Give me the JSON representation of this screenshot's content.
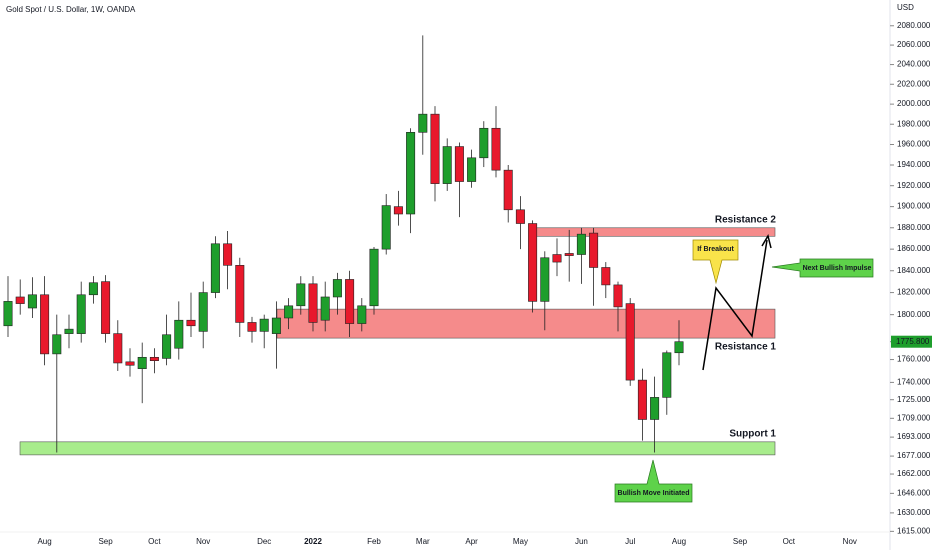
{
  "chart_data": {
    "type": "candlestick",
    "title": "Gold Spot / U.S. Dollar, 1W, OANDA",
    "currency": "USD",
    "log_scale": true,
    "up_color": "#1e9e2c",
    "down_color": "#e8192c",
    "categories": [
      null,
      null,
      null,
      "Aug",
      null,
      null,
      null,
      null,
      "Sep",
      null,
      null,
      null,
      "Oct",
      null,
      null,
      null,
      "Nov",
      null,
      null,
      null,
      null,
      "Dec",
      null,
      null,
      null,
      "2022",
      null,
      null,
      null,
      null,
      "Feb",
      null,
      null,
      null,
      "Mar",
      null,
      null,
      null,
      "Apr",
      null,
      null,
      null,
      "May",
      null,
      null,
      null,
      null,
      "Jun",
      null,
      null,
      null,
      "Jul",
      null,
      null,
      null,
      "Aug",
      null,
      null,
      null,
      null,
      "Sep",
      null,
      null,
      null,
      "Oct",
      null,
      null,
      null,
      null,
      "Nov"
    ],
    "open": [
      1790,
      1816,
      1806,
      1818,
      1765,
      1783,
      1783,
      1818,
      1830,
      1783,
      1758,
      1752,
      1762,
      1761,
      1770,
      1795,
      1785,
      1820,
      1865,
      1845,
      1793,
      1785,
      1783,
      1797,
      1808,
      1828,
      1795,
      1816,
      1832,
      1792,
      1808,
      1860,
      1900,
      1893,
      1972,
      1990,
      1922,
      1958,
      1924,
      1947,
      1976,
      1935,
      1897,
      1884,
      1812,
      1855,
      1856,
      1855,
      1875,
      1843,
      1827,
      1810,
      1742,
      1708,
      1727,
      1766,
      null,
      null,
      null,
      null,
      null,
      null,
      null,
      null,
      null,
      null,
      null,
      null,
      null,
      null
    ],
    "high": [
      1835,
      1832,
      1834,
      1835,
      1800,
      1800,
      1830,
      1835,
      1836,
      1795,
      1770,
      1775,
      1770,
      1800,
      1812,
      1820,
      1830,
      1872,
      1877,
      1852,
      1798,
      1800,
      1812,
      1815,
      1835,
      1835,
      1830,
      1838,
      1840,
      1815,
      1862,
      1912,
      1915,
      1976,
      2070,
      1998,
      1966,
      1962,
      1955,
      1983,
      1998,
      1940,
      1910,
      1887,
      1858,
      1870,
      1878,
      1880,
      1880,
      1848,
      1830,
      1815,
      1752,
      1745,
      1768,
      1795,
      null,
      null,
      null,
      null,
      null,
      null,
      null,
      null,
      null,
      null,
      null,
      null,
      null,
      null
    ],
    "low": [
      1780,
      1800,
      1797,
      1755,
      1680,
      1770,
      1775,
      1810,
      1775,
      1750,
      1745,
      1722,
      1748,
      1755,
      1760,
      1780,
      1770,
      1815,
      1823,
      1780,
      1775,
      1770,
      1752,
      1787,
      1800,
      1785,
      1785,
      1800,
      1780,
      1785,
      1800,
      1855,
      1882,
      1875,
      1950,
      1905,
      1915,
      1890,
      1918,
      1938,
      1928,
      1885,
      1860,
      1802,
      1786,
      1835,
      1830,
      1828,
      1808,
      1815,
      1785,
      1737,
      1690,
      1680,
      1712,
      1755,
      null,
      null,
      null,
      null,
      null,
      null,
      null,
      null,
      null,
      null,
      null,
      null,
      null,
      null
    ],
    "close": [
      1812,
      1810,
      1818,
      1765,
      1782,
      1787,
      1818,
      1829,
      1783,
      1757,
      1755,
      1762,
      1759,
      1782,
      1795,
      1790,
      1820,
      1865,
      1845,
      1793,
      1785,
      1796,
      1797,
      1808,
      1828,
      1793,
      1816,
      1832,
      1792,
      1808,
      1860,
      1901,
      1893,
      1972,
      1990,
      1922,
      1958,
      1924,
      1947,
      1976,
      1935,
      1897,
      1884,
      1812,
      1852,
      1848,
      1854,
      1874,
      1843,
      1827,
      1807,
      1742,
      1708,
      1727,
      1766,
      1775.8,
      null,
      null,
      null,
      null,
      null,
      null,
      null,
      null,
      null,
      null,
      null,
      null,
      null,
      null
    ],
    "ylim": [
      1600,
      2107
    ],
    "yticks": [
      {
        "value": 2080,
        "label": "2080.000"
      },
      {
        "value": 2060,
        "label": "2060.000"
      },
      {
        "value": 2040,
        "label": "2040.000"
      },
      {
        "value": 2020,
        "label": "2020.000"
      },
      {
        "value": 2000,
        "label": "2000.000"
      },
      {
        "value": 1980,
        "label": "1980.000"
      },
      {
        "value": 1960,
        "label": "1960.000"
      },
      {
        "value": 1940,
        "label": "1940.000"
      },
      {
        "value": 1920,
        "label": "1920.000"
      },
      {
        "value": 1900,
        "label": "1900.000"
      },
      {
        "value": 1880,
        "label": "1880.000"
      },
      {
        "value": 1860,
        "label": "1860.000"
      },
      {
        "value": 1840,
        "label": "1840.000"
      },
      {
        "value": 1820,
        "label": "1820.000"
      },
      {
        "value": 1800,
        "label": "1800.000"
      },
      {
        "value": 1775.8,
        "label": "1775.800"
      },
      {
        "value": 1760,
        "label": "1760.000"
      },
      {
        "value": 1740,
        "label": "1740.000"
      },
      {
        "value": 1725,
        "label": "1725.000"
      },
      {
        "value": 1709,
        "label": "1709.000"
      },
      {
        "value": 1693,
        "label": "1693.000"
      },
      {
        "value": 1677,
        "label": "1677.000"
      },
      {
        "value": 1662,
        "label": "1662.000"
      },
      {
        "value": 1646,
        "label": "1646.000"
      },
      {
        "value": 1630,
        "label": "1630.000"
      },
      {
        "value": 1615,
        "label": "1615.000"
      }
    ],
    "zones": [
      {
        "label": "Resistance 2",
        "range": [
          1872,
          1880
        ],
        "color": "#f58b8b"
      },
      {
        "label": "Resistance 1",
        "range": [
          1779,
          1805
        ],
        "color": "#f58b8b"
      },
      {
        "label": "Support 1",
        "range": [
          1678,
          1689
        ],
        "color": "#a8ec8c"
      }
    ],
    "callouts": [
      "If Breakout",
      "Next Bullish Impulse",
      "Bullish Move Initiated"
    ]
  }
}
